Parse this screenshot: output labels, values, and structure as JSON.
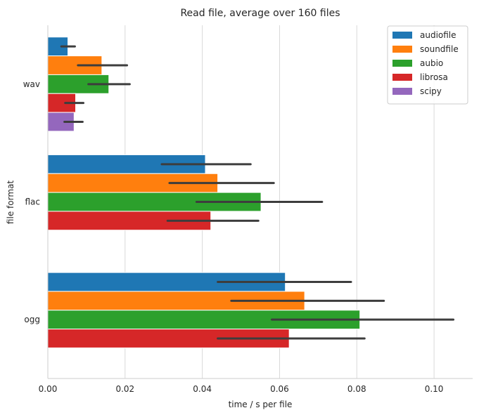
{
  "chart_data": {
    "type": "bar",
    "orientation": "horizontal",
    "title": "Read file, average over 160 files",
    "xlabel": "time / s per file",
    "ylabel": "file format",
    "xlim": [
      0.0,
      0.11
    ],
    "xticks": [
      "0.00",
      "0.02",
      "0.04",
      "0.06",
      "0.08",
      "0.10"
    ],
    "xtick_values": [
      0.0,
      0.02,
      0.04,
      0.06,
      0.08,
      0.1
    ],
    "categories": [
      "wav",
      "flac",
      "ogg"
    ],
    "grid": "vertical",
    "legend_position": "top-right",
    "series": [
      {
        "name": "audiofile",
        "color": "#1f77b4",
        "values": [
          0.0052,
          0.0408,
          0.0615
        ],
        "error_low": [
          0.0035,
          0.0295,
          0.044
        ],
        "error_high": [
          0.007,
          0.0525,
          0.0785
        ]
      },
      {
        "name": "soundfile",
        "color": "#ff7f0e",
        "values": [
          0.014,
          0.044,
          0.0665
        ],
        "error_low": [
          0.0078,
          0.0315,
          0.0475
        ],
        "error_high": [
          0.0205,
          0.0585,
          0.087
        ]
      },
      {
        "name": "aubio",
        "color": "#2ca02c",
        "values": [
          0.0158,
          0.0552,
          0.0808
        ],
        "error_low": [
          0.0105,
          0.0385,
          0.058
        ],
        "error_high": [
          0.0212,
          0.071,
          0.105
        ]
      },
      {
        "name": "librosa",
        "color": "#d62728",
        "values": [
          0.0072,
          0.0422,
          0.0625
        ],
        "error_low": [
          0.0045,
          0.031,
          0.044
        ],
        "error_high": [
          0.0092,
          0.0545,
          0.082
        ]
      },
      {
        "name": "scipy",
        "color": "#9467bd",
        "values": [
          0.0068,
          null,
          null
        ],
        "error_low": [
          0.0043,
          null,
          null
        ],
        "error_high": [
          0.009,
          null,
          null
        ]
      }
    ]
  }
}
